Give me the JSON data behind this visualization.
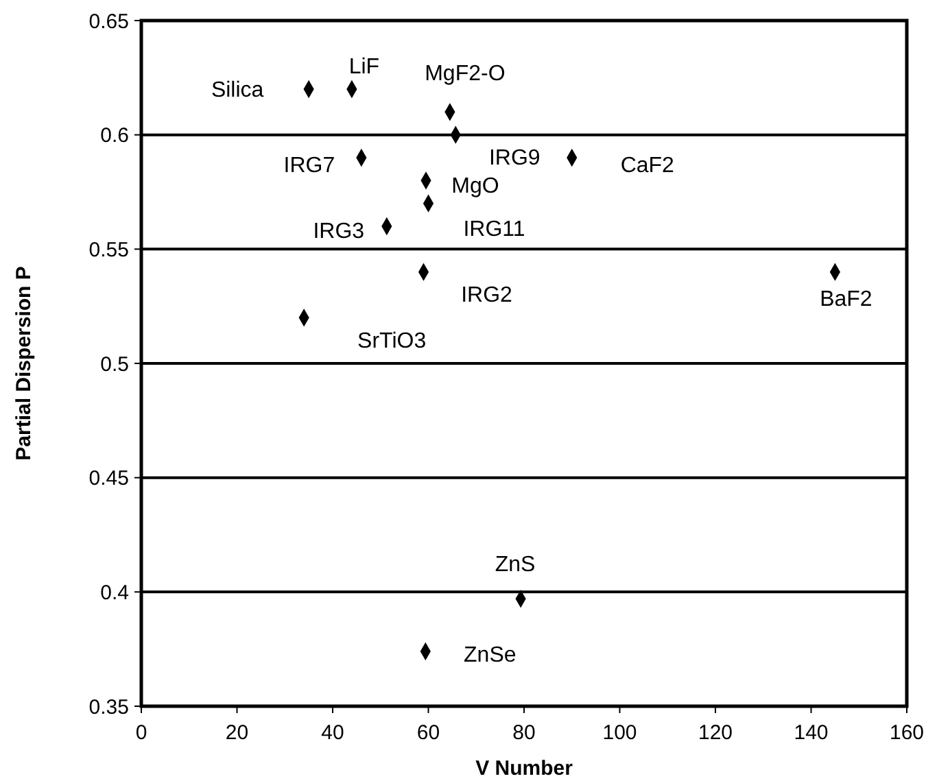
{
  "chart_data": {
    "type": "scatter",
    "xlabel": "V Number",
    "ylabel": "Partial Dispersion P",
    "x": [
      35,
      44,
      64.5,
      65.7,
      46,
      90,
      59.5,
      60,
      51.3,
      59,
      34,
      145,
      79.3,
      59.4
    ],
    "series": [
      {
        "color": "#000000",
        "values": [
          0.62,
          0.62,
          0.61,
          0.6,
          0.59,
          0.59,
          0.58,
          0.57,
          0.56,
          0.54,
          0.52,
          0.54,
          0.397,
          0.374
        ]
      }
    ],
    "xlim": [
      0,
      160
    ],
    "xticks": [
      0,
      20,
      40,
      60,
      80,
      100,
      120,
      140,
      160
    ],
    "ylim": [
      0.35,
      0.65
    ],
    "yticks": [
      0.35,
      0.4,
      0.45,
      0.5,
      0.55,
      0.6,
      0.65
    ],
    "grid": "y",
    "marker": "diamond",
    "annotations": [
      {
        "text": "Silica",
        "x": 35,
        "y": 0.62
      },
      {
        "text": "LiF",
        "x": 44,
        "y": 0.62
      },
      {
        "text": "MgF2-O",
        "x": 64.5,
        "y": 0.61
      },
      {
        "text": "IRG7",
        "x": 46,
        "y": 0.59
      },
      {
        "text": "IRG9",
        "x": 65.7,
        "y": 0.6
      },
      {
        "text": "CaF2",
        "x": 90,
        "y": 0.59
      },
      {
        "text": "MgO",
        "x": 59.5,
        "y": 0.58
      },
      {
        "text": "IRG3",
        "x": 51.3,
        "y": 0.56
      },
      {
        "text": "IRG11",
        "x": 60,
        "y": 0.57
      },
      {
        "text": "IRG2",
        "x": 59,
        "y": 0.54
      },
      {
        "text": "SrTiO3",
        "x": 34,
        "y": 0.52
      },
      {
        "text": "BaF2",
        "x": 145,
        "y": 0.54
      },
      {
        "text": "ZnS",
        "x": 79.3,
        "y": 0.397
      },
      {
        "text": "ZnSe",
        "x": 59.4,
        "y": 0.374
      }
    ]
  }
}
